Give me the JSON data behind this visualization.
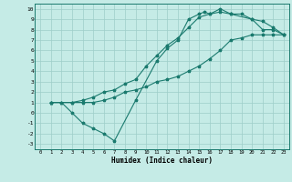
{
  "xlabel": "Humidex (Indice chaleur)",
  "bg_color": "#c5ebe6",
  "grid_color": "#9ecec9",
  "line_color": "#1a7a6e",
  "xlim": [
    -0.5,
    23.5
  ],
  "ylim": [
    -3.5,
    10.5
  ],
  "xticks": [
    0,
    1,
    2,
    3,
    4,
    5,
    6,
    7,
    8,
    9,
    10,
    11,
    12,
    13,
    14,
    15,
    16,
    17,
    18,
    19,
    20,
    21,
    22,
    23
  ],
  "yticks": [
    -3,
    -2,
    -1,
    0,
    1,
    2,
    3,
    4,
    5,
    6,
    7,
    8,
    9,
    10
  ],
  "line1_x": [
    1,
    2,
    3,
    4,
    5,
    6,
    7,
    9,
    11,
    12,
    13,
    14,
    15,
    15.5,
    16,
    17,
    18,
    19,
    20,
    21,
    22,
    23
  ],
  "line1_y": [
    1,
    1,
    0,
    -1,
    -1.5,
    -2,
    -2.7,
    1.2,
    5,
    6.2,
    7,
    9,
    9.5,
    9.7,
    9.5,
    10,
    9.5,
    9.5,
    9,
    8,
    8,
    7.5
  ],
  "line2_x": [
    1,
    2,
    3,
    4,
    5,
    6,
    7,
    8,
    9,
    10,
    11,
    12,
    13,
    14,
    15,
    16,
    17,
    18,
    19,
    20,
    21,
    22,
    23
  ],
  "line2_y": [
    1,
    1,
    1,
    1,
    1,
    1.2,
    1.5,
    2,
    2.2,
    2.5,
    3,
    3.2,
    3.5,
    4,
    4.5,
    5.2,
    6,
    7,
    7.2,
    7.5,
    7.5,
    7.5,
    7.5
  ],
  "line3_x": [
    1,
    3,
    4,
    5,
    6,
    7,
    8,
    9,
    10,
    11,
    12,
    13,
    14,
    15,
    16,
    17,
    18,
    20,
    21,
    22,
    23
  ],
  "line3_y": [
    1,
    1,
    1.2,
    1.5,
    2,
    2.2,
    2.8,
    3.2,
    4.5,
    5.5,
    6.5,
    7.2,
    8.2,
    9.2,
    9.5,
    9.7,
    9.5,
    9,
    8.8,
    8.2,
    7.5
  ]
}
